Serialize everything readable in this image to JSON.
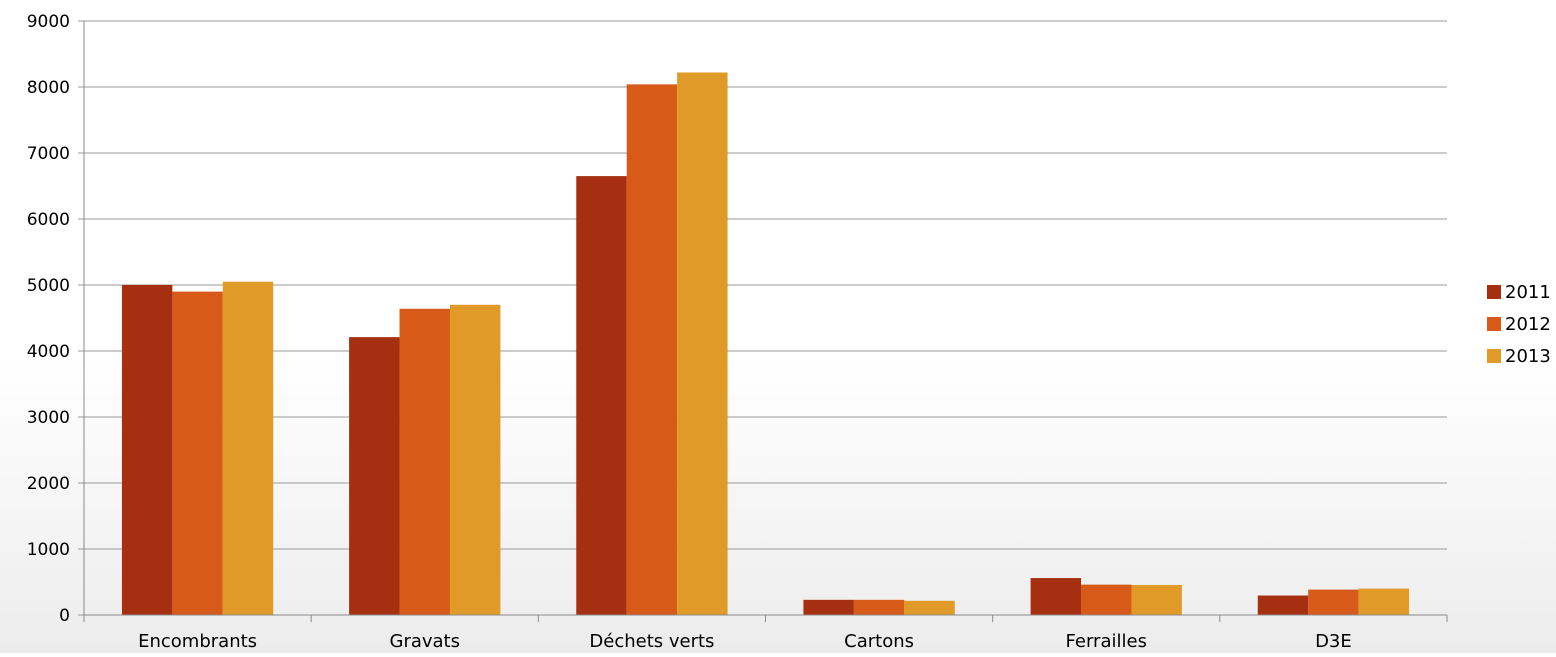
{
  "chart_data": {
    "type": "bar",
    "categories": [
      "Encombrants",
      "Gravats",
      "Déchets verts",
      "Cartons",
      "Ferrailles",
      "D3E"
    ],
    "series": [
      {
        "name": "2011",
        "values": [
          5000,
          4210,
          6650,
          230,
          560,
          295
        ],
        "color": "#a52f10"
      },
      {
        "name": "2012",
        "values": [
          4900,
          4640,
          8040,
          230,
          460,
          385
        ],
        "color": "#d75a19"
      },
      {
        "name": "2013",
        "values": [
          5050,
          4700,
          8220,
          215,
          455,
          400
        ],
        "color": "#e09a28"
      }
    ],
    "title": "",
    "xlabel": "",
    "ylabel": "",
    "ylim": [
      0,
      9000
    ],
    "yticks": [
      "0",
      "1000",
      "2000",
      "3000",
      "4000",
      "5000",
      "6000",
      "7000",
      "8000",
      "9000"
    ],
    "grid": true,
    "legend_position": "right"
  }
}
